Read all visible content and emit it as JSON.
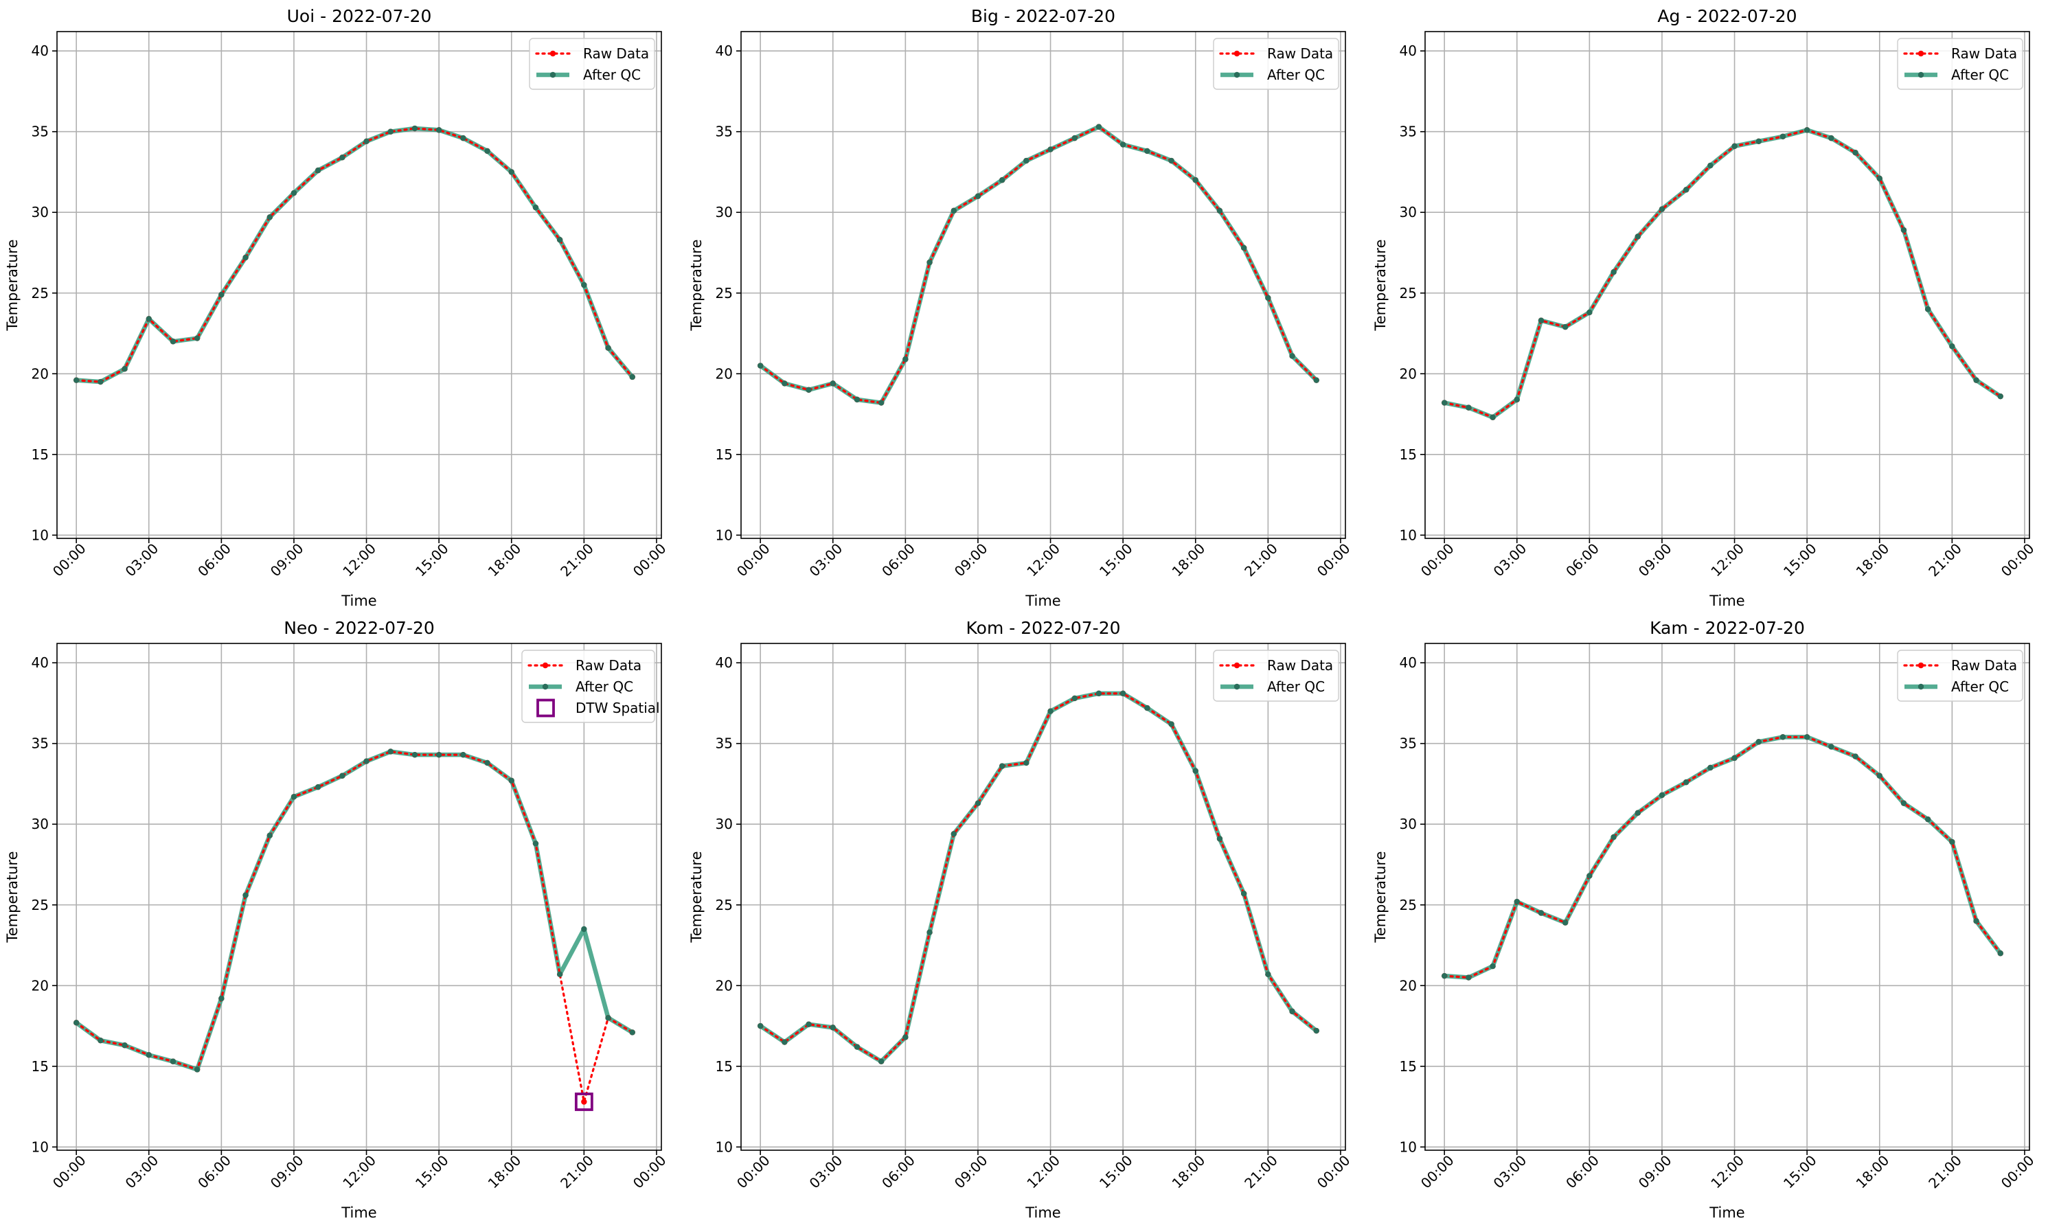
{
  "figure": {
    "colors": {
      "raw": "#ff0000",
      "qc": "#2e9a7a",
      "marker": "#2a6e5b",
      "dtw": "#800080",
      "grid": "#b0b0b0",
      "axis": "#000000"
    }
  },
  "chart_data": [
    {
      "type": "line",
      "title": "Uoi - 2022-07-20",
      "xlabel": "Time",
      "ylabel": "Temperature",
      "xlim": [
        -0.8,
        24.2
      ],
      "ylim": [
        9.8,
        41.2
      ],
      "xticks": [
        "00:00",
        "03:00",
        "06:00",
        "09:00",
        "12:00",
        "15:00",
        "18:00",
        "21:00",
        "00:00"
      ],
      "yticks": [
        "10",
        "15",
        "20",
        "25",
        "30",
        "35",
        "40"
      ],
      "grid": true,
      "legend_position": "top-right",
      "legend": [
        "Raw Data",
        "After QC"
      ],
      "series": [
        {
          "name": "Raw Data",
          "x": [
            0,
            1,
            2,
            3,
            4,
            5,
            6,
            7,
            8,
            9,
            10,
            11,
            12,
            13,
            14,
            15,
            16,
            17,
            18,
            19,
            20,
            21,
            22,
            23
          ],
          "values": [
            19.6,
            19.5,
            20.3,
            23.4,
            22.0,
            22.2,
            24.9,
            27.2,
            29.7,
            31.2,
            32.6,
            33.4,
            34.4,
            35.0,
            35.2,
            35.1,
            34.6,
            33.8,
            32.5,
            30.3,
            28.3,
            25.5,
            21.6,
            19.8
          ]
        },
        {
          "name": "After QC",
          "x": [
            0,
            1,
            2,
            3,
            4,
            5,
            6,
            7,
            8,
            9,
            10,
            11,
            12,
            13,
            14,
            15,
            16,
            17,
            18,
            19,
            20,
            21,
            22,
            23
          ],
          "values": [
            19.6,
            19.5,
            20.3,
            23.4,
            22.0,
            22.2,
            24.9,
            27.2,
            29.7,
            31.2,
            32.6,
            33.4,
            34.4,
            35.0,
            35.2,
            35.1,
            34.6,
            33.8,
            32.5,
            30.3,
            28.3,
            25.5,
            21.6,
            19.8
          ]
        }
      ],
      "flags": []
    },
    {
      "type": "line",
      "title": "Big - 2022-07-20",
      "xlabel": "Time",
      "ylabel": "Temperature",
      "xlim": [
        -0.8,
        24.2
      ],
      "ylim": [
        9.8,
        41.2
      ],
      "xticks": [
        "00:00",
        "03:00",
        "06:00",
        "09:00",
        "12:00",
        "15:00",
        "18:00",
        "21:00",
        "00:00"
      ],
      "yticks": [
        "10",
        "15",
        "20",
        "25",
        "30",
        "35",
        "40"
      ],
      "grid": true,
      "legend_position": "top-right",
      "legend": [
        "Raw Data",
        "After QC"
      ],
      "series": [
        {
          "name": "Raw Data",
          "x": [
            0,
            1,
            2,
            3,
            4,
            5,
            6,
            7,
            8,
            9,
            10,
            11,
            12,
            13,
            14,
            15,
            16,
            17,
            18,
            19,
            20,
            21,
            22,
            23
          ],
          "values": [
            20.5,
            19.4,
            19.0,
            19.4,
            18.4,
            18.2,
            20.9,
            26.9,
            30.1,
            31.0,
            32.0,
            33.2,
            33.9,
            34.6,
            35.3,
            34.2,
            33.8,
            33.2,
            32.0,
            30.1,
            27.8,
            24.7,
            21.1,
            19.6
          ]
        },
        {
          "name": "After QC",
          "x": [
            0,
            1,
            2,
            3,
            4,
            5,
            6,
            7,
            8,
            9,
            10,
            11,
            12,
            13,
            14,
            15,
            16,
            17,
            18,
            19,
            20,
            21,
            22,
            23
          ],
          "values": [
            20.5,
            19.4,
            19.0,
            19.4,
            18.4,
            18.2,
            20.9,
            26.9,
            30.1,
            31.0,
            32.0,
            33.2,
            33.9,
            34.6,
            35.3,
            34.2,
            33.8,
            33.2,
            32.0,
            30.1,
            27.8,
            24.7,
            21.1,
            19.6
          ]
        }
      ],
      "flags": []
    },
    {
      "type": "line",
      "title": "Ag - 2022-07-20",
      "xlabel": "Time",
      "ylabel": "Temperature",
      "xlim": [
        -0.8,
        24.2
      ],
      "ylim": [
        9.8,
        41.2
      ],
      "xticks": [
        "00:00",
        "03:00",
        "06:00",
        "09:00",
        "12:00",
        "15:00",
        "18:00",
        "21:00",
        "00:00"
      ],
      "yticks": [
        "10",
        "15",
        "20",
        "25",
        "30",
        "35",
        "40"
      ],
      "grid": true,
      "legend_position": "top-right",
      "legend": [
        "Raw Data",
        "After QC"
      ],
      "series": [
        {
          "name": "Raw Data",
          "x": [
            0,
            1,
            2,
            3,
            4,
            5,
            6,
            7,
            8,
            9,
            10,
            11,
            12,
            13,
            14,
            15,
            16,
            17,
            18,
            19,
            20,
            21,
            22,
            23
          ],
          "values": [
            18.2,
            17.9,
            17.3,
            18.4,
            23.3,
            22.9,
            23.8,
            26.3,
            28.5,
            30.2,
            31.4,
            32.9,
            34.1,
            34.4,
            34.7,
            35.1,
            34.6,
            33.7,
            32.1,
            28.9,
            24.0,
            21.7,
            19.6,
            18.6
          ]
        },
        {
          "name": "After QC",
          "x": [
            0,
            1,
            2,
            3,
            4,
            5,
            6,
            7,
            8,
            9,
            10,
            11,
            12,
            13,
            14,
            15,
            16,
            17,
            18,
            19,
            20,
            21,
            22,
            23
          ],
          "values": [
            18.2,
            17.9,
            17.3,
            18.4,
            23.3,
            22.9,
            23.8,
            26.3,
            28.5,
            30.2,
            31.4,
            32.9,
            34.1,
            34.4,
            34.7,
            35.1,
            34.6,
            33.7,
            32.1,
            28.9,
            24.0,
            21.7,
            19.6,
            18.6
          ]
        }
      ],
      "flags": []
    },
    {
      "type": "line",
      "title": "Neo - 2022-07-20",
      "xlabel": "Time",
      "ylabel": "Temperature",
      "xlim": [
        -0.8,
        24.2
      ],
      "ylim": [
        9.8,
        41.2
      ],
      "xticks": [
        "00:00",
        "03:00",
        "06:00",
        "09:00",
        "12:00",
        "15:00",
        "18:00",
        "21:00",
        "00:00"
      ],
      "yticks": [
        "10",
        "15",
        "20",
        "25",
        "30",
        "35",
        "40"
      ],
      "grid": true,
      "legend_position": "top-right",
      "legend": [
        "Raw Data",
        "After QC",
        "DTW Spatial"
      ],
      "series": [
        {
          "name": "Raw Data",
          "x": [
            0,
            1,
            2,
            3,
            4,
            5,
            6,
            7,
            8,
            9,
            10,
            11,
            12,
            13,
            14,
            15,
            16,
            17,
            18,
            19,
            20,
            21,
            22,
            23
          ],
          "values": [
            17.7,
            16.6,
            16.3,
            15.7,
            15.3,
            14.8,
            19.2,
            25.6,
            29.3,
            31.7,
            32.3,
            33.0,
            33.9,
            34.5,
            34.3,
            34.3,
            34.3,
            33.8,
            32.7,
            28.8,
            20.7,
            12.8,
            18.0,
            17.1
          ]
        },
        {
          "name": "After QC",
          "x": [
            0,
            1,
            2,
            3,
            4,
            5,
            6,
            7,
            8,
            9,
            10,
            11,
            12,
            13,
            14,
            15,
            16,
            17,
            18,
            19,
            20,
            21,
            22,
            23
          ],
          "values": [
            17.7,
            16.6,
            16.3,
            15.7,
            15.3,
            14.8,
            19.2,
            25.6,
            29.3,
            31.7,
            32.3,
            33.0,
            33.9,
            34.5,
            34.3,
            34.3,
            34.3,
            33.8,
            32.7,
            28.8,
            20.7,
            23.5,
            18.0,
            17.1
          ]
        }
      ],
      "flags": [
        {
          "name": "DTW Spatial",
          "x": 21,
          "y": 12.8
        }
      ]
    },
    {
      "type": "line",
      "title": "Kom - 2022-07-20",
      "xlabel": "Time",
      "ylabel": "Temperature",
      "xlim": [
        -0.8,
        24.2
      ],
      "ylim": [
        9.8,
        41.2
      ],
      "xticks": [
        "00:00",
        "03:00",
        "06:00",
        "09:00",
        "12:00",
        "15:00",
        "18:00",
        "21:00",
        "00:00"
      ],
      "yticks": [
        "10",
        "15",
        "20",
        "25",
        "30",
        "35",
        "40"
      ],
      "grid": true,
      "legend_position": "top-right",
      "legend": [
        "Raw Data",
        "After QC"
      ],
      "series": [
        {
          "name": "Raw Data",
          "x": [
            0,
            1,
            2,
            3,
            4,
            5,
            6,
            7,
            8,
            9,
            10,
            11,
            12,
            13,
            14,
            15,
            16,
            17,
            18,
            19,
            20,
            21,
            22,
            23
          ],
          "values": [
            17.5,
            16.5,
            17.6,
            17.4,
            16.2,
            15.3,
            16.8,
            23.3,
            29.4,
            31.3,
            33.6,
            33.8,
            37.0,
            37.8,
            38.1,
            38.1,
            37.2,
            36.2,
            33.3,
            29.1,
            25.7,
            20.7,
            18.4,
            17.2
          ]
        },
        {
          "name": "After QC",
          "x": [
            0,
            1,
            2,
            3,
            4,
            5,
            6,
            7,
            8,
            9,
            10,
            11,
            12,
            13,
            14,
            15,
            16,
            17,
            18,
            19,
            20,
            21,
            22,
            23
          ],
          "values": [
            17.5,
            16.5,
            17.6,
            17.4,
            16.2,
            15.3,
            16.8,
            23.3,
            29.4,
            31.3,
            33.6,
            33.8,
            37.0,
            37.8,
            38.1,
            38.1,
            37.2,
            36.2,
            33.3,
            29.1,
            25.7,
            20.7,
            18.4,
            17.2
          ]
        }
      ],
      "flags": []
    },
    {
      "type": "line",
      "title": "Kam - 2022-07-20",
      "xlabel": "Time",
      "ylabel": "Temperature",
      "xlim": [
        -0.8,
        24.2
      ],
      "ylim": [
        9.8,
        41.2
      ],
      "xticks": [
        "00:00",
        "03:00",
        "06:00",
        "09:00",
        "12:00",
        "15:00",
        "18:00",
        "21:00",
        "00:00"
      ],
      "yticks": [
        "10",
        "15",
        "20",
        "25",
        "30",
        "35",
        "40"
      ],
      "grid": true,
      "legend_position": "top-right",
      "legend": [
        "Raw Data",
        "After QC"
      ],
      "series": [
        {
          "name": "Raw Data",
          "x": [
            0,
            1,
            2,
            3,
            4,
            5,
            6,
            7,
            8,
            9,
            10,
            11,
            12,
            13,
            14,
            15,
            16,
            17,
            18,
            19,
            20,
            21,
            22,
            23
          ],
          "values": [
            20.6,
            20.5,
            21.2,
            25.2,
            24.5,
            23.9,
            26.8,
            29.2,
            30.7,
            31.8,
            32.6,
            33.5,
            34.1,
            35.1,
            35.4,
            35.4,
            34.8,
            34.2,
            33.0,
            31.3,
            30.3,
            28.9,
            24.0,
            22.0
          ]
        },
        {
          "name": "After QC",
          "x": [
            0,
            1,
            2,
            3,
            4,
            5,
            6,
            7,
            8,
            9,
            10,
            11,
            12,
            13,
            14,
            15,
            16,
            17,
            18,
            19,
            20,
            21,
            22,
            23
          ],
          "values": [
            20.6,
            20.5,
            21.2,
            25.2,
            24.5,
            23.9,
            26.8,
            29.2,
            30.7,
            31.8,
            32.6,
            33.5,
            34.1,
            35.1,
            35.4,
            35.4,
            34.8,
            34.2,
            33.0,
            31.3,
            30.3,
            28.9,
            24.0,
            22.0
          ]
        }
      ],
      "flags": []
    }
  ]
}
